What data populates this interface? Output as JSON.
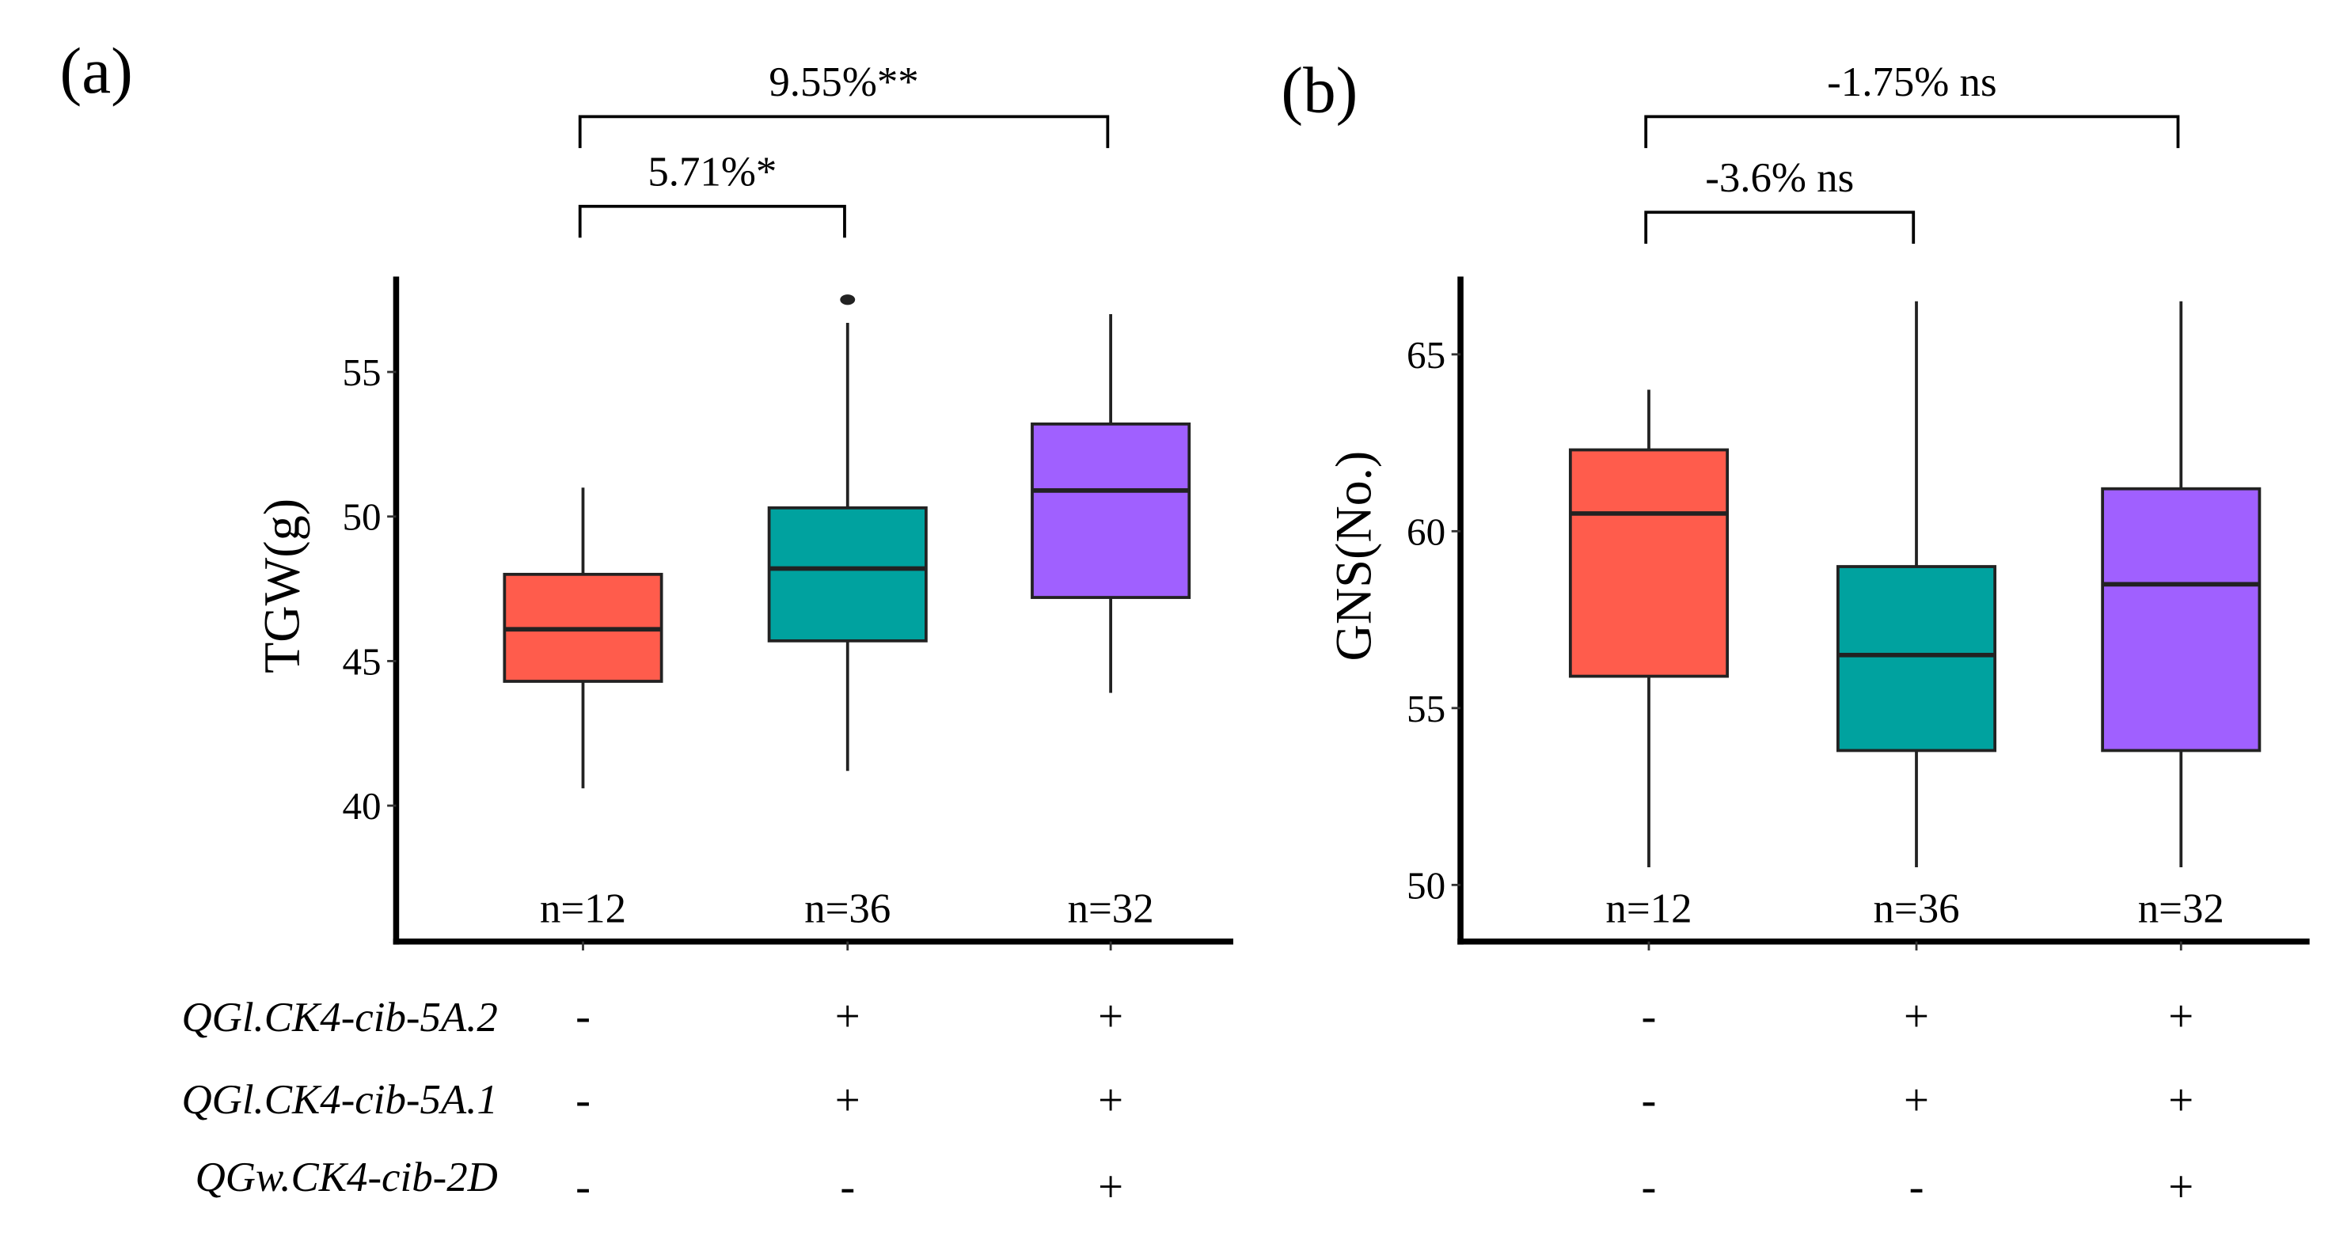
{
  "colors": {
    "group1": "#FF5C4C",
    "group2": "#00A29F",
    "group3": "#A060FF",
    "line": "#222222"
  },
  "genotype_rows": [
    {
      "label": "QGl.CK4-cib-5A.2",
      "signs": [
        "-",
        "+",
        "+"
      ]
    },
    {
      "label": "QGl.CK4-cib-5A.1",
      "signs": [
        "-",
        "+",
        "+"
      ]
    },
    {
      "label": "QGw.CK4-cib-2D",
      "signs": [
        "-",
        "-",
        "+"
      ]
    }
  ],
  "chart_data": [
    {
      "panel_label": "(a)",
      "type": "box",
      "ylabel": "TGW(g)",
      "ylim": [
        35.3,
        58.3
      ],
      "yticks": [
        40,
        45,
        50,
        55
      ],
      "groups": [
        {
          "n_label": "n=12",
          "whisker_low": 40.6,
          "q1": 44.3,
          "median": 46.1,
          "q3": 48.0,
          "whisker_high": 51.0,
          "outliers": []
        },
        {
          "n_label": "n=36",
          "whisker_low": 41.2,
          "q1": 45.7,
          "median": 48.2,
          "q3": 50.3,
          "whisker_high": 56.7,
          "outliers": [
            57.5
          ]
        },
        {
          "n_label": "n=32",
          "whisker_low": 43.9,
          "q1": 47.2,
          "median": 50.9,
          "q3": 53.2,
          "whisker_high": 57.0,
          "outliers": []
        }
      ],
      "comparisons": [
        {
          "from": 0,
          "to": 1,
          "label": "5.71%*"
        },
        {
          "from": 0,
          "to": 2,
          "label": "9.55%**"
        }
      ]
    },
    {
      "panel_label": "(b)",
      "type": "box",
      "ylabel": "GNS(No.)",
      "ylim": [
        48.4,
        67.2
      ],
      "yticks": [
        50,
        55,
        60,
        65
      ],
      "groups": [
        {
          "n_label": "n=12",
          "whisker_low": 50.5,
          "q1": 55.9,
          "median": 60.5,
          "q3": 62.3,
          "whisker_high": 64.0,
          "outliers": []
        },
        {
          "n_label": "n=36",
          "whisker_low": 50.5,
          "q1": 53.8,
          "median": 56.5,
          "q3": 59.0,
          "whisker_high": 66.5,
          "outliers": []
        },
        {
          "n_label": "n=32",
          "whisker_low": 50.5,
          "q1": 53.8,
          "median": 58.5,
          "q3": 61.2,
          "whisker_high": 66.5,
          "outliers": []
        }
      ],
      "comparisons": [
        {
          "from": 0,
          "to": 1,
          "label": "-3.6% ns"
        },
        {
          "from": 0,
          "to": 2,
          "label": "-1.75% ns"
        }
      ]
    }
  ]
}
